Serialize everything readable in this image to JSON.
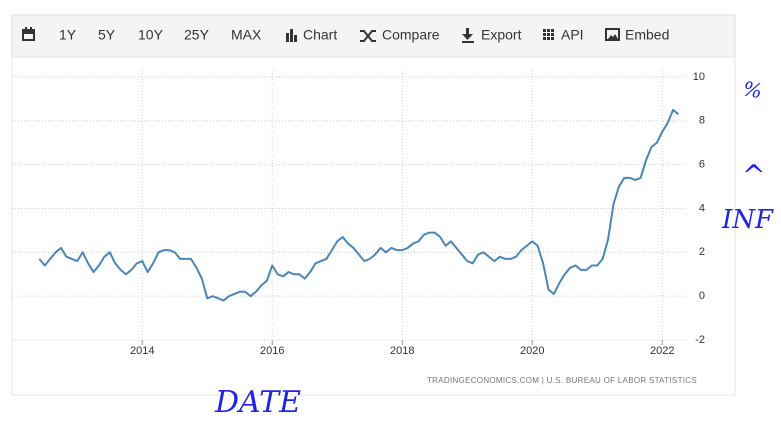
{
  "toolbar": {
    "ranges": [
      "1Y",
      "5Y",
      "10Y",
      "25Y",
      "MAX"
    ],
    "buttons": [
      "Chart",
      "Compare",
      "Export",
      "API",
      "Embed"
    ]
  },
  "annotations": [
    "%",
    "^",
    "INF",
    "DATE"
  ],
  "chart_data": {
    "type": "line",
    "source": "TRADINGECONOMICS.COM  |  U.S. BUREAU OF LABOR STATISTICS",
    "color": "#4a86b8",
    "grid": true,
    "xlim": [
      2012.35,
      2022.55
    ],
    "xticks": [
      2014,
      2016,
      2018,
      2020,
      2022
    ],
    "ylim": [
      -2,
      10
    ],
    "yticks": [
      -2,
      0,
      2,
      4,
      6,
      8,
      10
    ],
    "x": [
      2012.417,
      2012.5,
      2012.583,
      2012.667,
      2012.75,
      2012.833,
      2012.917,
      2013,
      2013.083,
      2013.167,
      2013.25,
      2013.333,
      2013.417,
      2013.5,
      2013.583,
      2013.667,
      2013.75,
      2013.833,
      2013.917,
      2014,
      2014.083,
      2014.167,
      2014.25,
      2014.333,
      2014.417,
      2014.5,
      2014.583,
      2014.667,
      2014.75,
      2014.833,
      2014.917,
      2015,
      2015.083,
      2015.167,
      2015.25,
      2015.333,
      2015.417,
      2015.5,
      2015.583,
      2015.667,
      2015.75,
      2015.833,
      2015.917,
      2016,
      2016.083,
      2016.167,
      2016.25,
      2016.333,
      2016.417,
      2016.5,
      2016.583,
      2016.667,
      2016.75,
      2016.833,
      2016.917,
      2017,
      2017.083,
      2017.167,
      2017.25,
      2017.333,
      2017.417,
      2017.5,
      2017.583,
      2017.667,
      2017.75,
      2017.833,
      2017.917,
      2018,
      2018.083,
      2018.167,
      2018.25,
      2018.333,
      2018.417,
      2018.5,
      2018.583,
      2018.667,
      2018.75,
      2018.833,
      2018.917,
      2019,
      2019.083,
      2019.167,
      2019.25,
      2019.333,
      2019.417,
      2019.5,
      2019.583,
      2019.667,
      2019.75,
      2019.833,
      2019.917,
      2020,
      2020.083,
      2020.167,
      2020.25,
      2020.333,
      2020.417,
      2020.5,
      2020.583,
      2020.667,
      2020.75,
      2020.833,
      2020.917,
      2021,
      2021.083,
      2021.167,
      2021.25,
      2021.333,
      2021.417,
      2021.5,
      2021.583,
      2021.667,
      2021.75,
      2021.833,
      2021.917,
      2022,
      2022.083,
      2022.167,
      2022.25
    ],
    "values": [
      1.7,
      1.4,
      1.7,
      2.0,
      2.2,
      1.8,
      1.7,
      1.6,
      2.0,
      1.5,
      1.1,
      1.4,
      1.8,
      2.0,
      1.5,
      1.2,
      1.0,
      1.2,
      1.5,
      1.6,
      1.1,
      1.5,
      2.0,
      2.1,
      2.1,
      2.0,
      1.7,
      1.7,
      1.7,
      1.3,
      0.8,
      -0.1,
      0.0,
      -0.1,
      -0.2,
      0.0,
      0.1,
      0.2,
      0.2,
      0.0,
      0.2,
      0.5,
      0.7,
      1.4,
      1.0,
      0.9,
      1.1,
      1.0,
      1.0,
      0.8,
      1.1,
      1.5,
      1.6,
      1.7,
      2.1,
      2.5,
      2.7,
      2.4,
      2.2,
      1.9,
      1.6,
      1.7,
      1.9,
      2.2,
      2.0,
      2.2,
      2.1,
      2.1,
      2.2,
      2.4,
      2.5,
      2.8,
      2.9,
      2.9,
      2.7,
      2.3,
      2.5,
      2.2,
      1.9,
      1.6,
      1.5,
      1.9,
      2.0,
      1.8,
      1.6,
      1.8,
      1.7,
      1.7,
      1.8,
      2.1,
      2.3,
      2.5,
      2.3,
      1.5,
      0.3,
      0.1,
      0.6,
      1.0,
      1.3,
      1.4,
      1.2,
      1.2,
      1.4,
      1.4,
      1.7,
      2.6,
      4.2,
      5.0,
      5.4,
      5.4,
      5.3,
      5.4,
      6.2,
      6.8,
      7.0,
      7.5,
      7.9,
      8.5,
      8.3
    ]
  }
}
